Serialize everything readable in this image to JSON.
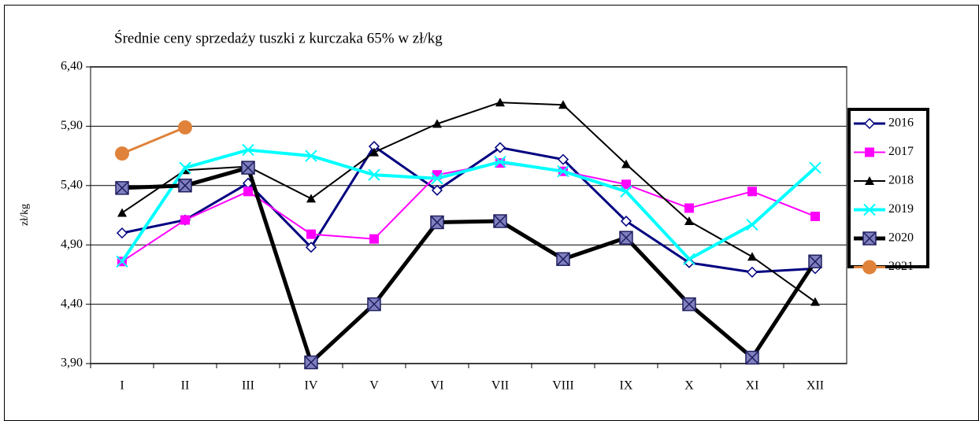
{
  "chart_data": {
    "type": "line",
    "title": "Średnie ceny sprzedaży tuszki z kurczaka 65% w zł/kg",
    "y_label": "zł/kg",
    "categories": [
      "I",
      "II",
      "III",
      "IV",
      "V",
      "VI",
      "VII",
      "VIII",
      "IX",
      "X",
      "XI",
      "XII"
    ],
    "ylim": [
      3.9,
      6.4
    ],
    "yticks": [
      {
        "value": 3.9,
        "label": "3,90"
      },
      {
        "value": 4.4,
        "label": "4,40"
      },
      {
        "value": 4.9,
        "label": "4,90"
      },
      {
        "value": 5.4,
        "label": "5,40"
      },
      {
        "value": 5.9,
        "label": "5,90"
      },
      {
        "value": 6.4,
        "label": "6,40"
      }
    ],
    "grid": true,
    "legend": "right",
    "series": [
      {
        "name": "2016",
        "color": "#000080",
        "marker": "diamond",
        "line_width": 3,
        "values": [
          5.0,
          5.11,
          5.42,
          4.88,
          5.73,
          5.36,
          5.72,
          5.62,
          5.1,
          4.75,
          4.67,
          4.7
        ]
      },
      {
        "name": "2017",
        "color": "#ff00ff",
        "marker": "square",
        "line_width": 2,
        "values": [
          4.76,
          5.11,
          5.35,
          4.99,
          4.95,
          5.49,
          5.59,
          5.52,
          5.41,
          5.21,
          5.35,
          5.14
        ]
      },
      {
        "name": "2018",
        "color": "#000000",
        "marker": "triangle",
        "line_width": 2,
        "values": [
          5.17,
          5.53,
          5.56,
          5.29,
          5.68,
          5.92,
          6.1,
          6.08,
          5.58,
          5.1,
          4.8,
          4.42
        ]
      },
      {
        "name": "2019",
        "color": "#00ffff",
        "marker": "x",
        "line_width": 4,
        "values": [
          4.76,
          5.55,
          5.7,
          5.65,
          5.49,
          5.46,
          5.6,
          5.52,
          5.35,
          4.78,
          5.07,
          5.55
        ]
      },
      {
        "name": "2020",
        "color": "#000000",
        "marker": "square-x",
        "line_width": 5,
        "values": [
          5.38,
          5.4,
          5.55,
          3.91,
          4.4,
          5.09,
          5.1,
          4.78,
          4.96,
          4.4,
          3.95,
          4.76
        ]
      },
      {
        "name": "2021",
        "color": "#e0823a",
        "marker": "circle",
        "line_width": 3,
        "values": [
          5.67,
          5.89,
          null,
          null,
          null,
          null,
          null,
          null,
          null,
          null,
          null,
          null
        ]
      }
    ]
  }
}
